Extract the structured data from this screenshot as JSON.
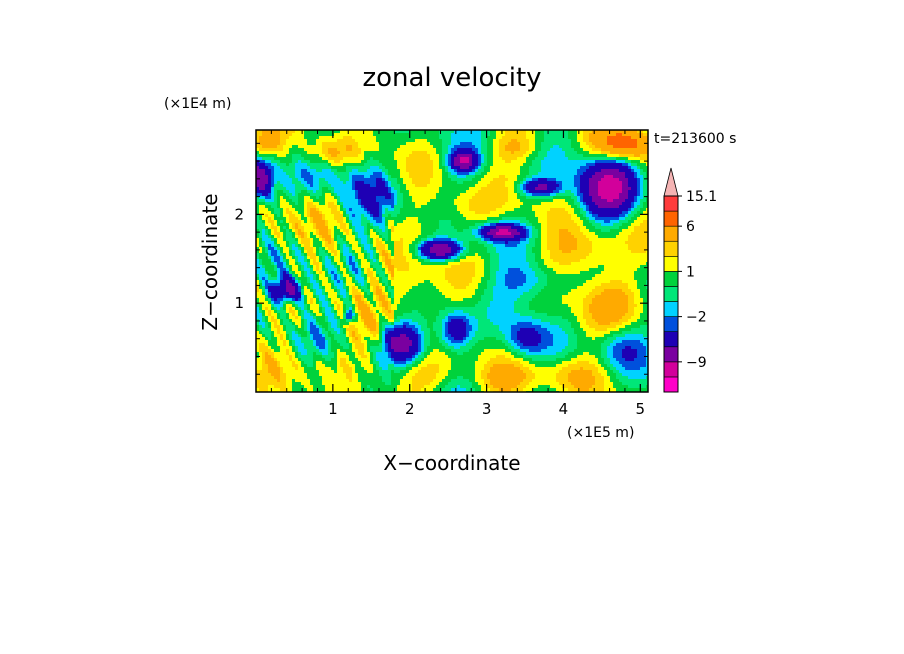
{
  "chart_data": {
    "type": "heatmap",
    "title": "zonal velocity",
    "xlabel": "X−coordinate",
    "ylabel": "Z−coordinate",
    "x_scale_label": "(×1E5 m)",
    "y_scale_label": "(×1E4 m)",
    "time_label": "t=213600 s",
    "xlim": [
      0,
      5.1
    ],
    "ylim": [
      0,
      2.95
    ],
    "x_ticks": [
      1,
      2,
      3,
      4,
      5
    ],
    "x_tick_labels": [
      "1",
      "2",
      "3",
      "4",
      "5"
    ],
    "y_ticks": [
      1,
      2
    ],
    "y_tick_labels": [
      "1",
      "2"
    ],
    "colorbar": {
      "levels": [
        -15.1,
        -12,
        -9,
        -6,
        -3,
        -2,
        -1,
        0,
        1,
        2,
        3,
        6,
        9,
        12,
        15.1
      ],
      "colors": [
        "#ff00c8",
        "#d2009b",
        "#7a00a0",
        "#1e00b4",
        "#0050dc",
        "#00d2ff",
        "#00e678",
        "#00d23c",
        "#ffff00",
        "#ffd200",
        "#ffaa00",
        "#ff6400",
        "#ff3c3c",
        "#f08282",
        "#f5b4b4"
      ],
      "labels": [
        {
          "value": 15.1,
          "text": "15.1"
        },
        {
          "value": 6,
          "text": "6"
        },
        {
          "value": 1,
          "text": "1"
        },
        {
          "value": -2,
          "text": "−2"
        },
        {
          "value": -9,
          "text": "−9"
        }
      ],
      "extend": "max"
    },
    "features": [
      {
        "x": 2.7,
        "z": 2.6,
        "amp": -9,
        "sx": 0.12,
        "sz": 0.08
      },
      {
        "x": 3.7,
        "z": 2.3,
        "amp": -7,
        "sx": 0.18,
        "sz": 0.07
      },
      {
        "x": 3.2,
        "z": 1.8,
        "amp": -9,
        "sx": 0.2,
        "sz": 0.06
      },
      {
        "x": 2.4,
        "z": 1.6,
        "amp": -10,
        "sx": 0.2,
        "sz": 0.08
      },
      {
        "x": 4.6,
        "z": 2.3,
        "amp": -10,
        "sx": 0.25,
        "sz": 0.22
      },
      {
        "x": 0.05,
        "z": 2.4,
        "amp": -9,
        "sx": 0.12,
        "sz": 0.15
      },
      {
        "x": 0.4,
        "z": 1.15,
        "amp": -8,
        "sx": 0.14,
        "sz": 0.1
      },
      {
        "x": 1.2,
        "z": 0.85,
        "amp": -5,
        "sx": 0.05,
        "sz": 0.06
      },
      {
        "x": 1.9,
        "z": 0.55,
        "amp": -8,
        "sx": 0.18,
        "sz": 0.15
      },
      {
        "x": 2.6,
        "z": 0.7,
        "amp": -6,
        "sx": 0.15,
        "sz": 0.15
      },
      {
        "x": 3.5,
        "z": 0.6,
        "amp": -4,
        "sx": 0.18,
        "sz": 0.15
      },
      {
        "x": 4.7,
        "z": 0.5,
        "amp": -3,
        "sx": 0.22,
        "sz": 0.18
      },
      {
        "x": 3.6,
        "z": 1.25,
        "amp": -3,
        "sx": 0.3,
        "sz": 0.15
      },
      {
        "x": 1.5,
        "z": 2.2,
        "amp": -2,
        "sx": 0.3,
        "sz": 0.2
      },
      {
        "x": 0.8,
        "z": 2.4,
        "amp": -2,
        "sx": 0.25,
        "sz": 0.15
      },
      {
        "x": 4.8,
        "z": 2.8,
        "amp": 7,
        "sx": 0.25,
        "sz": 0.12
      },
      {
        "x": 0.1,
        "z": 2.8,
        "amp": 3,
        "sx": 0.15,
        "sz": 0.12
      },
      {
        "x": 2.0,
        "z": 1.2,
        "amp": 3,
        "sx": 0.25,
        "sz": 0.3
      },
      {
        "x": 4.3,
        "z": 1.6,
        "amp": 3.5,
        "sx": 0.3,
        "sz": 0.2
      },
      {
        "x": 4.7,
        "z": 1.0,
        "amp": 3,
        "sx": 0.3,
        "sz": 0.25
      },
      {
        "x": 2.8,
        "z": 2.1,
        "amp": 2.5,
        "sx": 0.3,
        "sz": 0.15
      },
      {
        "x": 1.0,
        "z": 2.7,
        "amp": 2.5,
        "sx": 0.25,
        "sz": 0.12
      },
      {
        "x": 0.3,
        "z": 1.8,
        "amp": 2.5,
        "sx": 0.2,
        "sz": 0.2
      },
      {
        "x": 2.2,
        "z": 0.2,
        "amp": 2.5,
        "sx": 0.3,
        "sz": 0.15
      },
      {
        "x": 3.2,
        "z": 0.15,
        "amp": 2,
        "sx": 0.3,
        "sz": 0.12
      },
      {
        "x": 4.0,
        "z": 0.2,
        "amp": 2.5,
        "sx": 0.3,
        "sz": 0.15
      },
      {
        "x": 0.9,
        "z": 0.3,
        "amp": 2,
        "sx": 0.3,
        "sz": 0.15
      },
      {
        "x": 3.4,
        "z": 2.75,
        "amp": 2,
        "sx": 0.25,
        "sz": 0.1
      }
    ],
    "background_field": 0.4
  }
}
